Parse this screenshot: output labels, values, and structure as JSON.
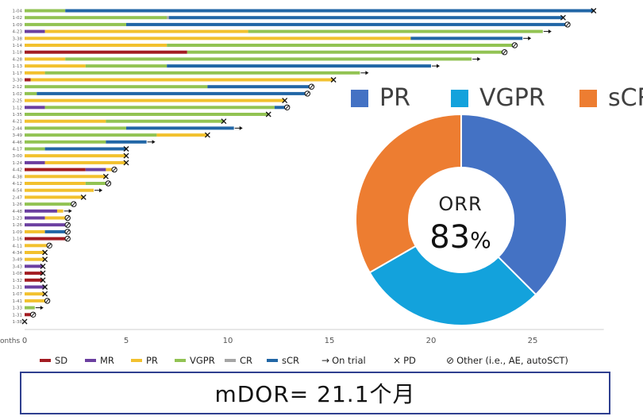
{
  "chart_data": [
    {
      "type": "swimmer",
      "axis_label": "onths",
      "x_ticks": [
        0,
        5,
        10,
        15,
        20,
        25
      ],
      "xlim": [
        0,
        28.5
      ],
      "colors": {
        "SD": "#a31c22",
        "MR": "#6b3fa0",
        "PR": "#f2c12e",
        "VGPR": "#92c353",
        "CR": "#a6a6a6",
        "sCR": "#2166a6"
      },
      "patients": [
        {
          "id": "1-04",
          "segments": [
            [
              "VGPR",
              0,
              2
            ],
            [
              "sCR",
              2,
              28
            ]
          ],
          "end": "pd"
        },
        {
          "id": "1-02",
          "segments": [
            [
              "VGPR",
              0,
              7
            ],
            [
              "CR",
              7,
              7.1
            ],
            [
              "sCR",
              7.1,
              26.5
            ]
          ],
          "end": "pd"
        },
        {
          "id": "1-09",
          "segments": [
            [
              "VGPR",
              0,
              5
            ],
            [
              "sCR",
              5,
              26.6
            ]
          ],
          "end": "other"
        },
        {
          "id": "4-23",
          "segments": [
            [
              "MR",
              0,
              1
            ],
            [
              "PR",
              1,
              11
            ],
            [
              "VGPR",
              11,
              25.5
            ]
          ],
          "end": "arrow"
        },
        {
          "id": "3-38",
          "segments": [
            [
              "PR",
              0,
              19
            ],
            [
              "sCR",
              19,
              24.5
            ]
          ],
          "end": "arrow"
        },
        {
          "id": "1-14",
          "segments": [
            [
              "PR",
              0,
              7
            ],
            [
              "VGPR",
              7,
              24
            ]
          ],
          "end": "other"
        },
        {
          "id": "1-18",
          "segments": [
            [
              "SD",
              0,
              8
            ],
            [
              "VGPR",
              8,
              23.5
            ]
          ],
          "end": "other"
        },
        {
          "id": "4-28",
          "segments": [
            [
              "PR",
              0,
              2
            ],
            [
              "VGPR",
              2,
              22
            ]
          ],
          "end": "arrow"
        },
        {
          "id": "1-13",
          "segments": [
            [
              "PR",
              0,
              3
            ],
            [
              "VGPR",
              3,
              7
            ],
            [
              "sCR",
              7,
              20
            ]
          ],
          "end": "arrow"
        },
        {
          "id": "1-17",
          "segments": [
            [
              "PR",
              0,
              1
            ],
            [
              "VGPR",
              1,
              16.5
            ]
          ],
          "end": "arrow"
        },
        {
          "id": "3-30",
          "segments": [
            [
              "SD",
              0,
              0.3
            ],
            [
              "PR",
              0.3,
              15.2
            ]
          ],
          "end": "pd"
        },
        {
          "id": "2-12",
          "segments": [
            [
              "VGPR",
              0,
              9
            ],
            [
              "sCR",
              9,
              14
            ]
          ],
          "end": "other"
        },
        {
          "id": "1-02",
          "segments": [
            [
              "VGPR",
              0,
              0.6
            ],
            [
              "sCR",
              0.6,
              13.8
            ]
          ],
          "end": "other"
        },
        {
          "id": "2-25",
          "segments": [
            [
              "PR",
              0,
              12.8
            ]
          ],
          "end": "pd"
        },
        {
          "id": "1-12",
          "segments": [
            [
              "MR",
              0,
              1
            ],
            [
              "VGPR",
              1,
              12.3
            ],
            [
              "sCR",
              12.3,
              12.8
            ]
          ],
          "end": "other"
        },
        {
          "id": "1-35",
          "segments": [
            [
              "VGPR",
              0,
              12
            ]
          ],
          "end": "pd"
        },
        {
          "id": "4-21",
          "segments": [
            [
              "PR",
              0,
              4
            ],
            [
              "VGPR",
              4,
              9.8
            ]
          ],
          "end": "pd"
        },
        {
          "id": "2-44",
          "segments": [
            [
              "VGPR",
              0,
              5
            ],
            [
              "sCR",
              5,
              10.3
            ]
          ],
          "end": "arrow"
        },
        {
          "id": "3-49",
          "segments": [
            [
              "VGPR",
              0,
              6.5
            ],
            [
              "PR",
              6.5,
              9
            ]
          ],
          "end": "pd"
        },
        {
          "id": "4-46",
          "segments": [
            [
              "VGPR",
              0,
              4
            ],
            [
              "sCR",
              4,
              6
            ]
          ],
          "end": "arrow"
        },
        {
          "id": "4-17",
          "segments": [
            [
              "VGPR",
              0,
              1
            ],
            [
              "sCR",
              1,
              5
            ]
          ],
          "end": "pd"
        },
        {
          "id": "3-00",
          "segments": [
            [
              "PR",
              0,
              5
            ]
          ],
          "end": "pd"
        },
        {
          "id": "1-24",
          "segments": [
            [
              "MR",
              0,
              1
            ],
            [
              "PR",
              1,
              5
            ]
          ],
          "end": "pd"
        },
        {
          "id": "4-42",
          "segments": [
            [
              "SD",
              0,
              3
            ],
            [
              "MR",
              3,
              4
            ],
            [
              "PR",
              4,
              4.3
            ]
          ],
          "end": "other"
        },
        {
          "id": "4-38",
          "segments": [
            [
              "PR",
              0,
              4
            ]
          ],
          "end": "pd"
        },
        {
          "id": "4-12",
          "segments": [
            [
              "PR",
              0,
              3
            ],
            [
              "VGPR",
              3,
              4
            ]
          ],
          "end": "other"
        },
        {
          "id": "4-54",
          "segments": [
            [
              "PR",
              0,
              3.4
            ]
          ],
          "end": "arrow"
        },
        {
          "id": "2-47",
          "segments": [
            [
              "PR",
              0,
              2.9
            ]
          ],
          "end": "pd"
        },
        {
          "id": "1-26",
          "segments": [
            [
              "VGPR",
              0,
              2.3
            ]
          ],
          "end": "other"
        },
        {
          "id": "4-48",
          "segments": [
            [
              "MR",
              0,
              1.6
            ],
            [
              "PR",
              1.6,
              1.9
            ]
          ],
          "end": "arrow"
        },
        {
          "id": "1-23",
          "segments": [
            [
              "MR",
              0,
              1
            ],
            [
              "PR",
              1,
              2
            ]
          ],
          "end": "other"
        },
        {
          "id": "1-26",
          "segments": [
            [
              "MR",
              0,
              2
            ]
          ],
          "end": "other"
        },
        {
          "id": "1-09",
          "segments": [
            [
              "PR",
              0,
              1
            ],
            [
              "sCR",
              1,
              2
            ]
          ],
          "end": "other"
        },
        {
          "id": "1-16",
          "segments": [
            [
              "SD",
              0,
              2
            ]
          ],
          "end": "other"
        },
        {
          "id": "4-11",
          "segments": [
            [
              "PR",
              0,
              1.1
            ]
          ],
          "end": "other"
        },
        {
          "id": "4-34",
          "segments": [
            [
              "PR",
              0,
              1
            ]
          ],
          "end": "pd"
        },
        {
          "id": "3-49",
          "segments": [
            [
              "PR",
              0,
              1
            ]
          ],
          "end": "pd"
        },
        {
          "id": "3-43",
          "segments": [
            [
              "MR",
              0,
              0.9
            ]
          ],
          "end": "pd"
        },
        {
          "id": "1-08",
          "segments": [
            [
              "SD",
              0,
              0.9
            ]
          ],
          "end": "pd"
        },
        {
          "id": "1-32",
          "segments": [
            [
              "SD",
              0,
              0.9
            ]
          ],
          "end": "pd"
        },
        {
          "id": "1-31",
          "segments": [
            [
              "MR",
              0,
              1
            ]
          ],
          "end": "pd"
        },
        {
          "id": "1-07",
          "segments": [
            [
              "PR",
              0,
              1
            ]
          ],
          "end": "pd"
        },
        {
          "id": "1-41",
          "segments": [
            [
              "PR",
              0,
              1
            ]
          ],
          "end": "other"
        },
        {
          "id": "1-33",
          "segments": [
            [
              "VGPR",
              0,
              0.5
            ]
          ],
          "end": "arrow"
        },
        {
          "id": "1-31",
          "segments": [
            [
              "SD",
              0,
              0.3
            ]
          ],
          "end": "other"
        },
        {
          "id": "1-38",
          "segments": [],
          "end": "pd",
          "end_x": 0
        }
      ]
    },
    {
      "type": "pie",
      "donut": true,
      "labels": [
        "PR",
        "VGPR",
        "sCR"
      ],
      "values": [
        37.5,
        29.2,
        33.3
      ],
      "colors": [
        "#4472c4",
        "#13a2dc",
        "#ed7d31"
      ],
      "center_label": "ORR",
      "center_value": "83",
      "center_unit": "%"
    }
  ],
  "legend": {
    "items": [
      {
        "label": "SD",
        "color": "#a31c22"
      },
      {
        "label": "MR",
        "color": "#6b3fa0"
      },
      {
        "label": "PR",
        "color": "#f2c12e"
      },
      {
        "label": "VGPR",
        "color": "#92c353"
      },
      {
        "label": "CR",
        "color": "#a6a6a6"
      },
      {
        "label": "sCR",
        "color": "#2166a6"
      }
    ],
    "on_trial": "On trial",
    "pd": "PD",
    "other": "Other (i.e., AE, autoSCT)"
  },
  "summary": "mDOR= 21.1个月"
}
